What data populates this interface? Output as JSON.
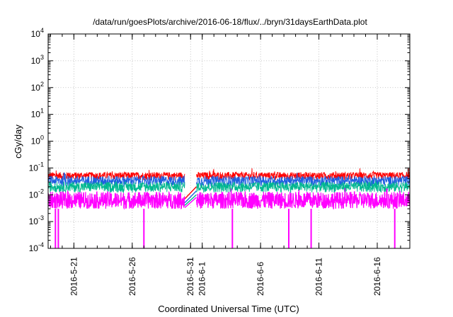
{
  "chart_data": {
    "type": "line",
    "title": "/data/run/goesPlots/archive/2016-06-18/flux/../bryn/31daysEarthData.plot",
    "xlabel": "Coordinated Universal Time (UTC)",
    "ylabel": "cGy/day",
    "yscale": "log",
    "ylim": [
      0.0001,
      10000
    ],
    "xlim": [
      "2016-05-18T19:00",
      "2016-06-18T19:00"
    ],
    "grid": true,
    "legend": "none",
    "ytick_labels": [
      {
        "base": "10",
        "exp": "-4"
      },
      {
        "base": "10",
        "exp": "-3"
      },
      {
        "base": "10",
        "exp": "-2"
      },
      {
        "base": "10",
        "exp": "-1"
      },
      {
        "base": "10",
        "exp": "0"
      },
      {
        "base": "10",
        "exp": "1"
      },
      {
        "base": "10",
        "exp": "2"
      },
      {
        "base": "10",
        "exp": "3"
      },
      {
        "base": "10",
        "exp": "4"
      }
    ],
    "xtick_labels": [
      "2016-5-21",
      "2016-5-26",
      "2016-5-31",
      "2016-6-1",
      "2016-6-6",
      "2016-6-11",
      "2016-6-16"
    ],
    "xtick_dates": [
      "2016-05-21",
      "2016-05-26",
      "2016-05-31",
      "2016-06-01",
      "2016-06-06",
      "2016-06-11",
      "2016-06-16"
    ],
    "data_gap": [
      "2016-05-30T12:00",
      "2016-05-31T12:00"
    ],
    "series": [
      {
        "color": "#ff0000",
        "typical_range": [
          0.035,
          0.07
        ],
        "gap_line": [
          [
            "2016-05-30T12:00",
            0.007
          ],
          [
            "2016-05-31T12:00",
            0.02
          ]
        ]
      },
      {
        "color": "#1f5fe0",
        "typical_range": [
          0.02,
          0.05
        ],
        "gap_line": [
          [
            "2016-05-30T12:00",
            0.005
          ],
          [
            "2016-05-31T12:00",
            0.014
          ]
        ]
      },
      {
        "color": "#00b890",
        "typical_range": [
          0.012,
          0.03
        ],
        "gap_line": [
          [
            "2016-05-30T12:00",
            0.004
          ],
          [
            "2016-05-31T12:00",
            0.01
          ]
        ]
      },
      {
        "color": "#ff00ff",
        "typical_range": [
          0.003,
          0.013
        ],
        "dropouts": [
          "2016-05-19T10:00",
          "2016-05-19T16:00",
          "2016-05-27T00:00",
          "2016-06-03T14:00",
          "2016-06-08T10:00",
          "2016-06-10T08:00",
          "2016-06-17T12:00"
        ],
        "gap_line": [
          [
            "2016-05-30T12:00",
            0.0033
          ],
          [
            "2016-05-31T12:00",
            0.008
          ]
        ]
      }
    ]
  }
}
